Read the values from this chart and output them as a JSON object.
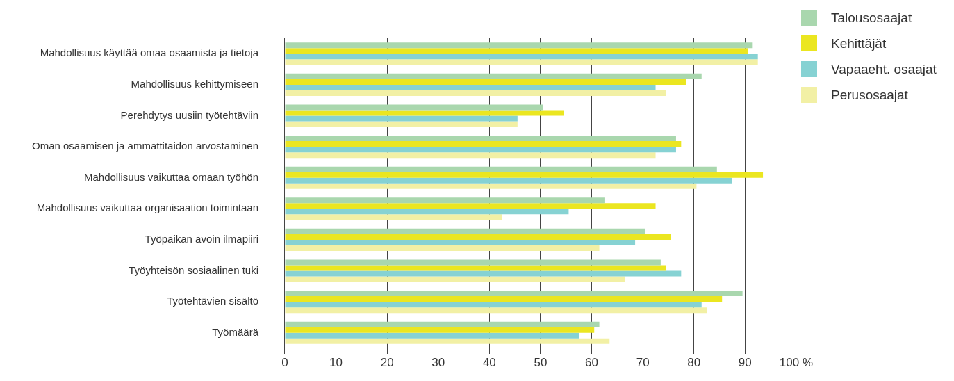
{
  "chart_data": {
    "type": "bar",
    "orientation": "horizontal",
    "categories": [
      "Mahdollisuus käyttää omaa osaamista ja tietoja",
      "Mahdollisuus kehittymiseen",
      "Perehdytys uusiin työtehtäviin",
      "Oman osaamisen ja ammattitaidon arvostaminen",
      "Mahdollisuus vaikuttaa omaan työhön",
      "Mahdollisuus vaikuttaa organisaation toimintaan",
      "Työpaikan avoin ilmapiiri",
      "Työyhteisön sosiaalinen tuki",
      "Työtehtävien sisältö",
      "Työmäärä"
    ],
    "series": [
      {
        "name": "Talousosaajat",
        "color": "#a9d7ae",
        "values": [
          91.5,
          81.5,
          50.5,
          76.5,
          84.5,
          62.5,
          70.5,
          73.5,
          89.5,
          61.5
        ]
      },
      {
        "name": "Kehittäjät",
        "color": "#ebe620",
        "values": [
          90.5,
          78.5,
          54.5,
          77.5,
          93.5,
          72.5,
          75.5,
          74.5,
          85.5,
          60.5
        ]
      },
      {
        "name": "Vapaaeht. osaajat",
        "color": "#86d2d3",
        "values": [
          92.5,
          72.5,
          45.5,
          76.5,
          87.5,
          55.5,
          68.5,
          77.5,
          81.5,
          57.5
        ]
      },
      {
        "name": "Perusosaajat",
        "color": "#f2f0a5",
        "values": [
          92.5,
          74.5,
          45.5,
          72.5,
          80.5,
          42.5,
          61.5,
          66.5,
          82.5,
          63.5
        ]
      }
    ],
    "xlim": [
      0,
      100
    ],
    "xticks": [
      0,
      10,
      20,
      30,
      40,
      50,
      60,
      70,
      80,
      90,
      {
        "value": 100,
        "label": "100 %"
      }
    ],
    "grid": "x",
    "legend": "top right"
  }
}
